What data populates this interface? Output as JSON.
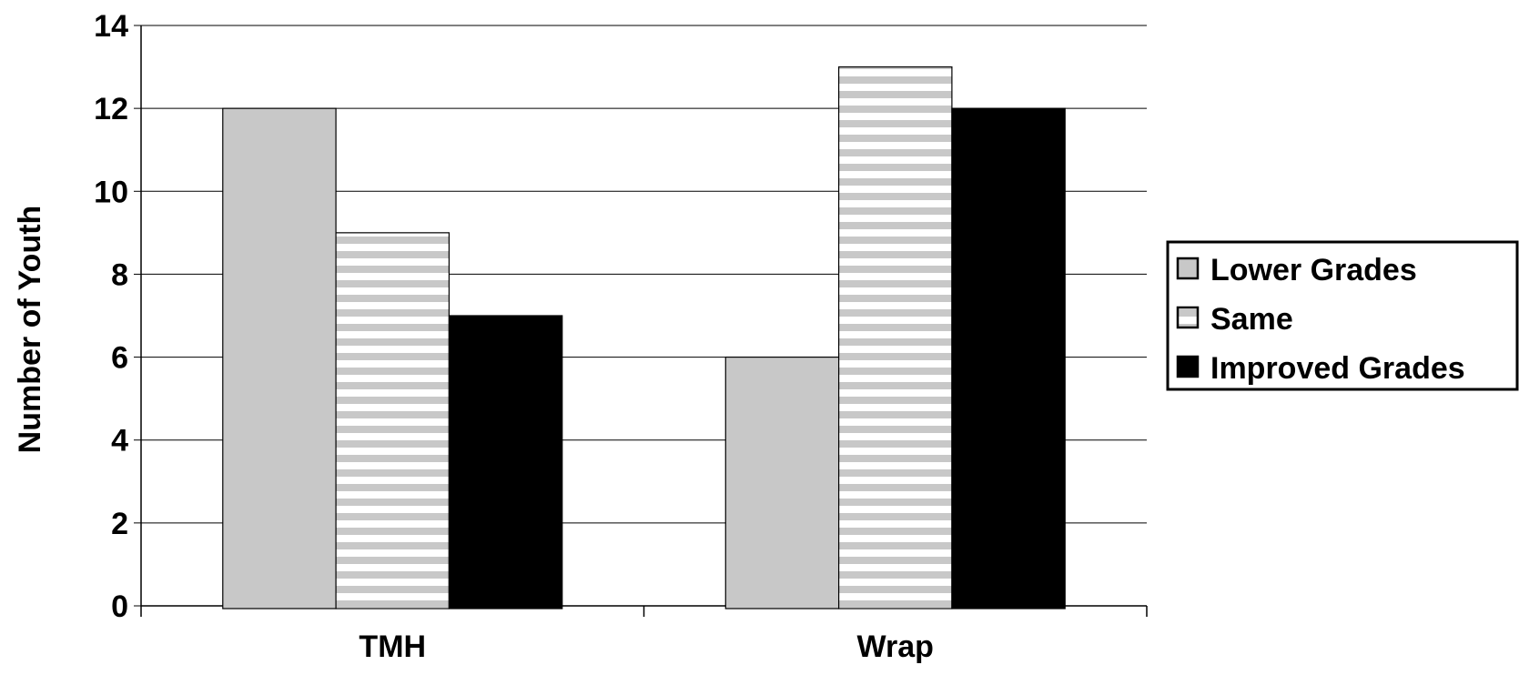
{
  "chart_data": {
    "type": "bar",
    "title": "",
    "xlabel": "",
    "ylabel": "Number of Youth",
    "categories": [
      "TMH",
      "Wrap"
    ],
    "series": [
      {
        "name": "Lower Grades",
        "values": [
          12,
          6
        ],
        "color": "#c8c8c8",
        "pattern": "solid"
      },
      {
        "name": "Same",
        "values": [
          9,
          13
        ],
        "color": "#c8c8c8",
        "pattern": "horizontal-stripes"
      },
      {
        "name": "Improved Grades",
        "values": [
          7,
          12
        ],
        "color": "#000000",
        "pattern": "solid"
      }
    ],
    "ylim": [
      0,
      14
    ],
    "yticks": [
      "0",
      "2",
      "4",
      "6",
      "8",
      "10",
      "12",
      "14"
    ],
    "grid": true,
    "legend_position": "right"
  }
}
